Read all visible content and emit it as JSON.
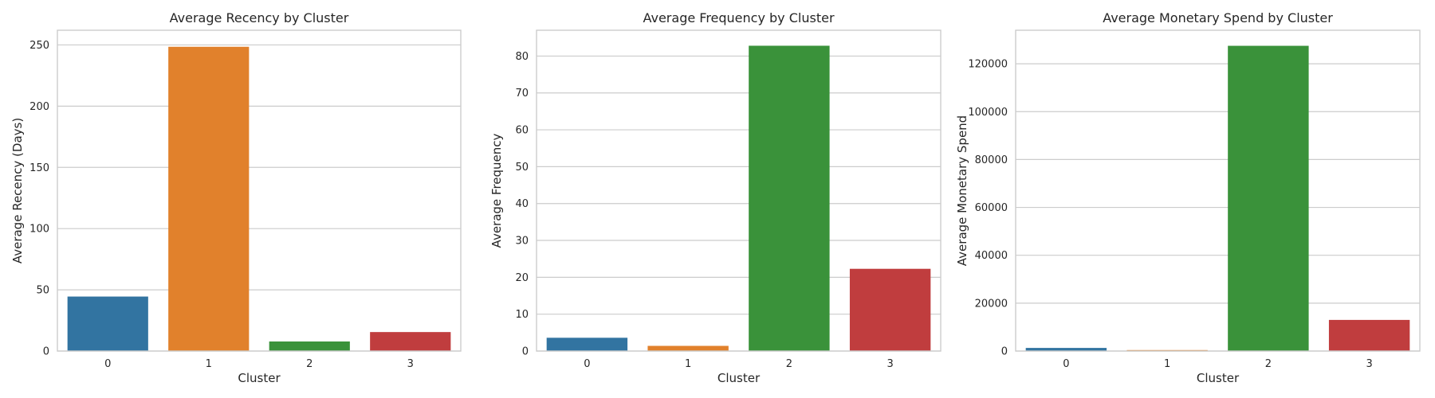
{
  "chart_data": [
    {
      "type": "bar",
      "title": "Average Recency by Cluster",
      "xlabel": "Cluster",
      "ylabel": "Average Recency (Days)",
      "categories": [
        "0",
        "1",
        "2",
        "3"
      ],
      "values": [
        44.5,
        248.5,
        7.8,
        15.5
      ],
      "colors": [
        "#3274a1",
        "#e1812c",
        "#3a923a",
        "#c03d3e"
      ],
      "ylim": [
        0,
        262
      ],
      "yticks": [
        0,
        50,
        100,
        150,
        200,
        250
      ],
      "grid": true
    },
    {
      "type": "bar",
      "title": "Average Frequency by Cluster",
      "xlabel": "Cluster",
      "ylabel": "Average Frequency",
      "categories": [
        "0",
        "1",
        "2",
        "3"
      ],
      "values": [
        3.6,
        1.4,
        82.8,
        22.3
      ],
      "colors": [
        "#3274a1",
        "#e1812c",
        "#3a923a",
        "#c03d3e"
      ],
      "ylim": [
        0,
        87
      ],
      "yticks": [
        0,
        10,
        20,
        30,
        40,
        50,
        60,
        70,
        80
      ],
      "grid": true
    },
    {
      "type": "bar",
      "title": "Average Monetary Spend by Cluster",
      "xlabel": "Cluster",
      "ylabel": "Average Monetary Spend",
      "categories": [
        "0",
        "1",
        "2",
        "3"
      ],
      "values": [
        1300,
        400,
        127500,
        13000
      ],
      "colors": [
        "#3274a1",
        "#e1812c",
        "#3a923a",
        "#c03d3e"
      ],
      "ylim": [
        0,
        134000
      ],
      "yticks": [
        0,
        20000,
        40000,
        60000,
        80000,
        100000,
        120000
      ],
      "grid": true
    }
  ]
}
